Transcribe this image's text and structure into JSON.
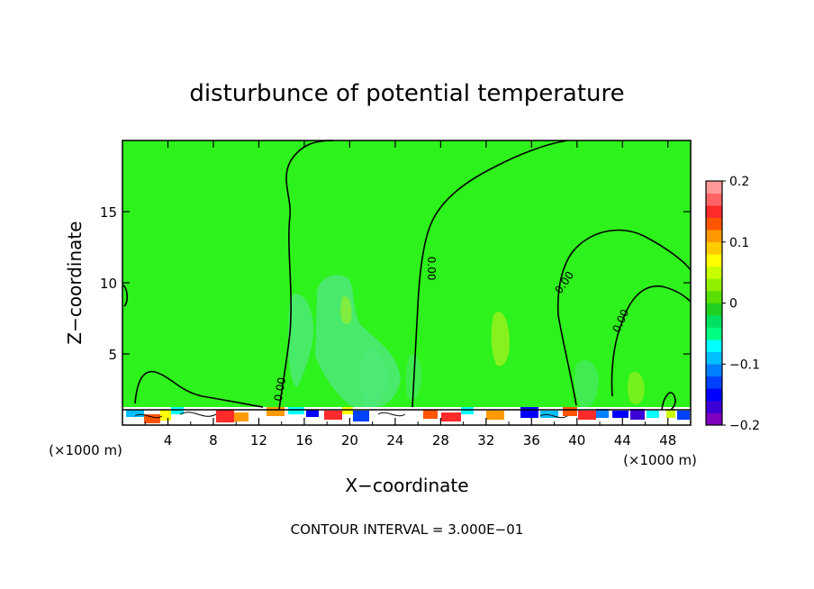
{
  "chart_data": {
    "type": "heatmap",
    "title": "disturbunce of potential temperature",
    "xlabel": "X−coordinate",
    "ylabel": "Z−coordinate",
    "x_unit": "(×1000 m)",
    "x_unit_right": "(×1000 m)",
    "footer": "CONTOUR INTERVAL = 3.000E−01",
    "xlim": [
      0,
      50
    ],
    "ylim": [
      0,
      20
    ],
    "x_ticks": [
      4,
      8,
      12,
      16,
      20,
      24,
      28,
      32,
      36,
      40,
      44,
      48
    ],
    "y_ticks": [
      5,
      10,
      15
    ],
    "colorbar": {
      "range": [
        -0.2,
        0.2
      ],
      "ticks": [
        0.2,
        0.1,
        0,
        -0.1,
        -0.2
      ],
      "tick_labels": [
        "0.2",
        "0.1",
        "0",
        "−0.1",
        "−0.2"
      ],
      "colors": [
        "#7f00bf",
        "#3b00d6",
        "#0000ff",
        "#0040ff",
        "#0080ff",
        "#00bfff",
        "#00ffff",
        "#00ff80",
        "#00e060",
        "#20d020",
        "#5ae000",
        "#90f000",
        "#c8ff00",
        "#ffff00",
        "#ffcc00",
        "#ff9900",
        "#ff5500",
        "#ff2a2a",
        "#ff6464",
        "#ff9a9a"
      ]
    },
    "contour_label": "0.00",
    "background_value": 0
  },
  "colors": {
    "field": "#2ef21b",
    "light_patch": "#4ee87a",
    "lighter_patch": "#7be87a",
    "yellow_patch": "#a5f020"
  }
}
